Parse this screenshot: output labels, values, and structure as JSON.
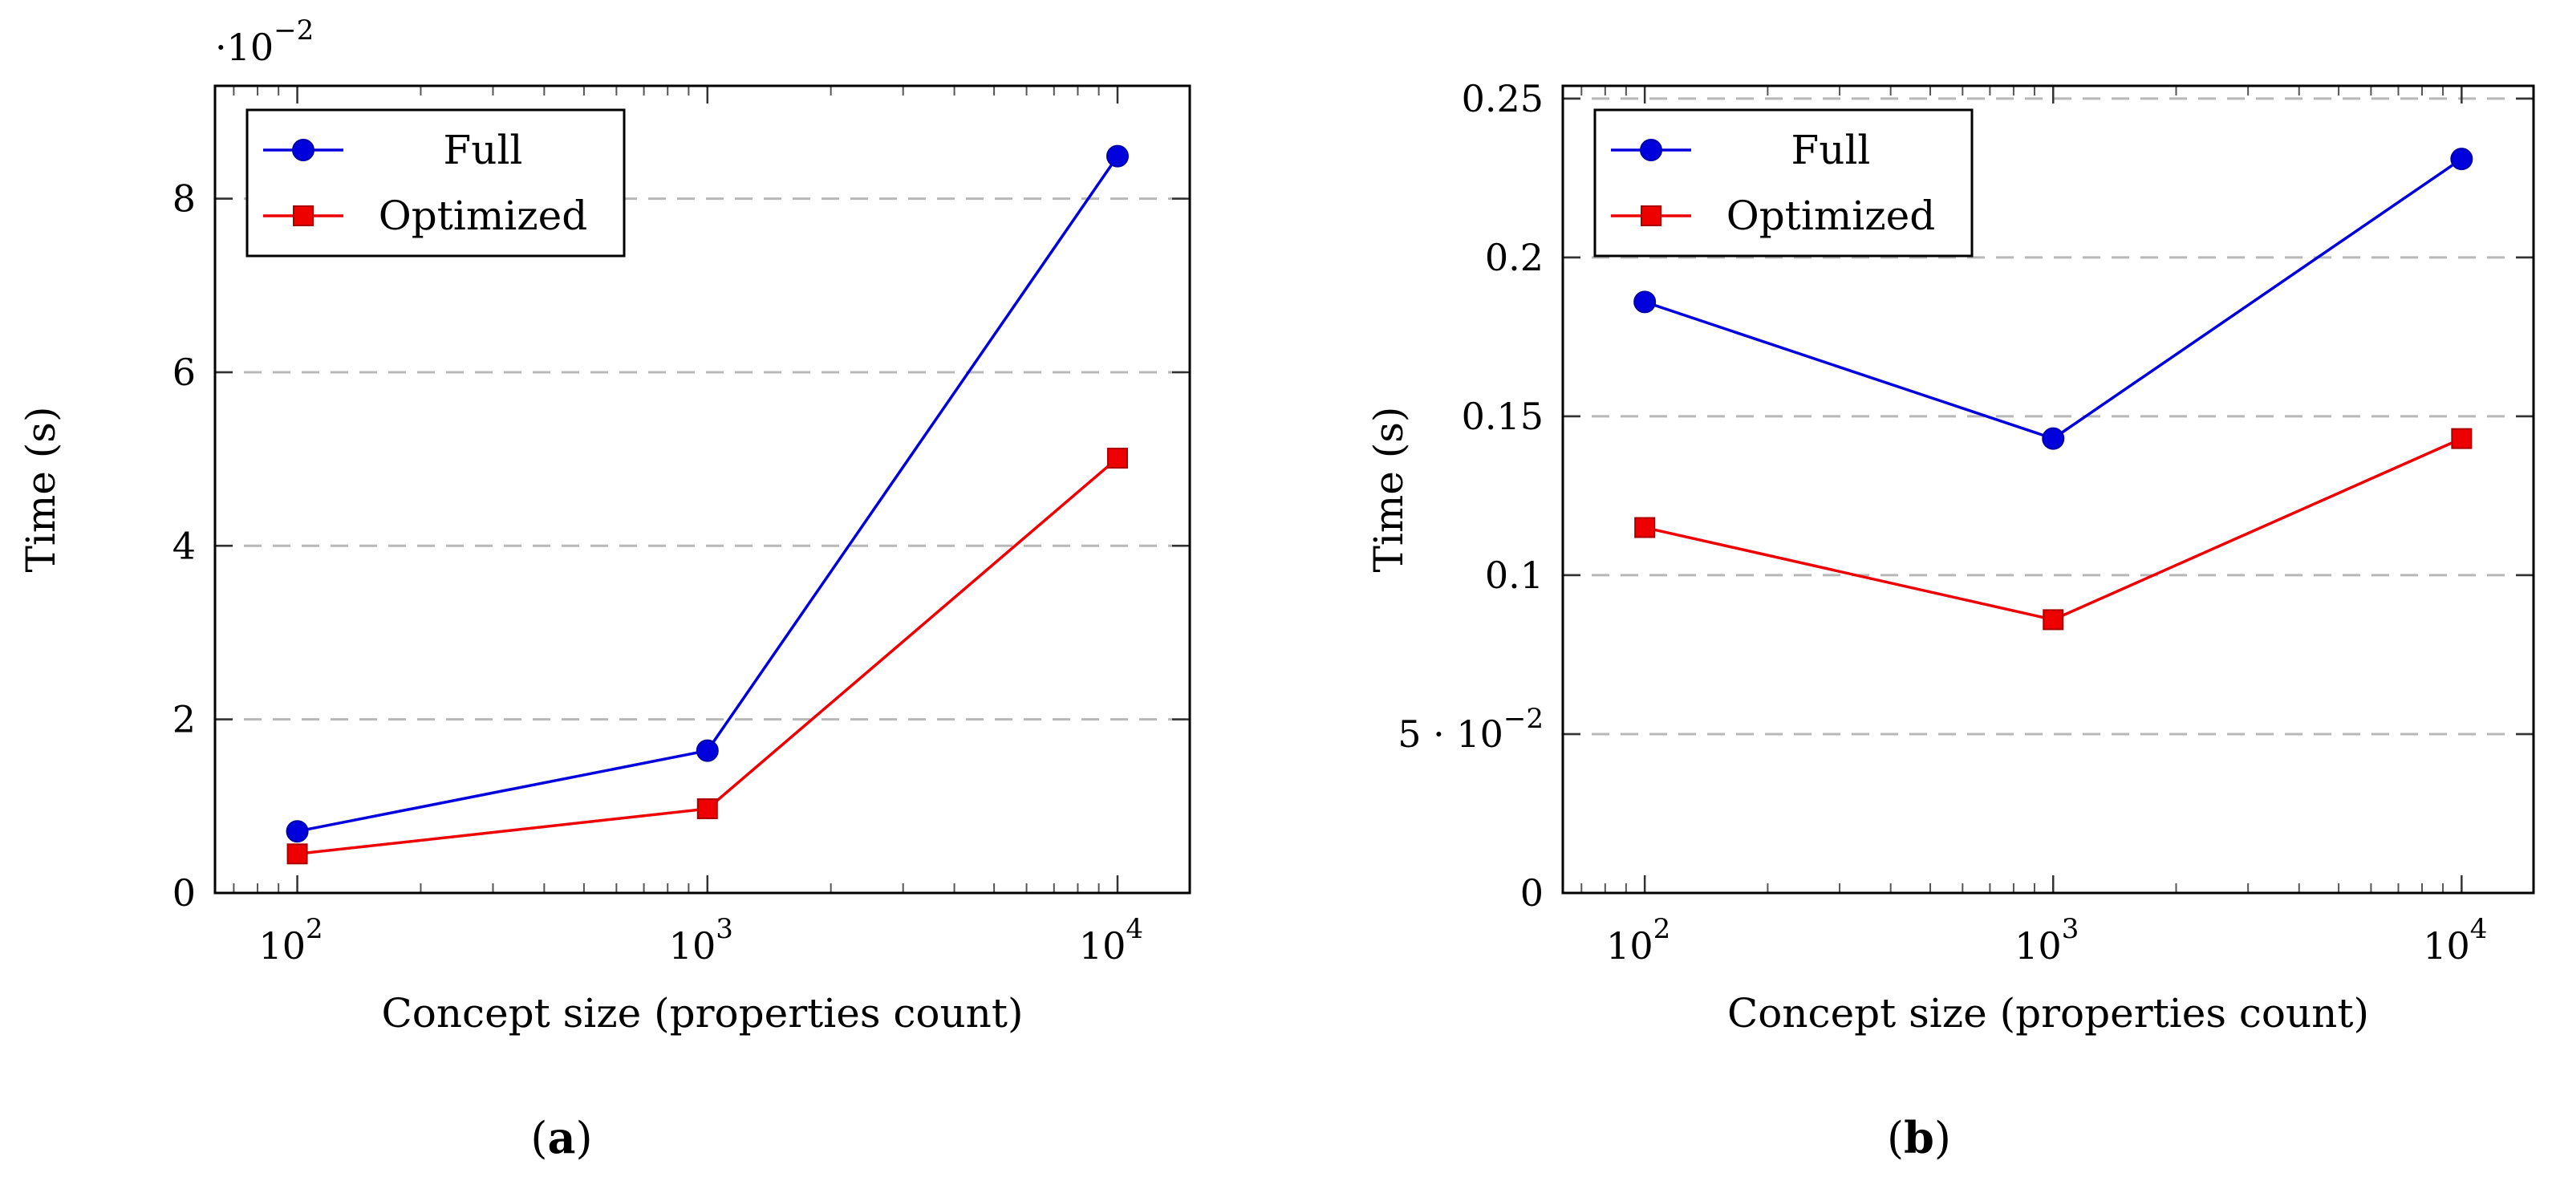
{
  "chart_data": [
    {
      "type": "line",
      "panel": "a",
      "caption_letter": "a",
      "caption_open": "(",
      "caption_close": ")",
      "xlabel": "Concept size (properties count)",
      "ylabel": "Time (s)",
      "xscale": "log",
      "xlim": [
        63,
        15000
      ],
      "ylim": [
        0,
        0.093
      ],
      "x": [
        100,
        1000,
        10000
      ],
      "x_ticks": [
        {
          "value": 100,
          "base": "10",
          "exp": "2"
        },
        {
          "value": 1000,
          "base": "10",
          "exp": "3"
        },
        {
          "value": 10000,
          "base": "10",
          "exp": "4"
        }
      ],
      "y_ticks": [
        {
          "value": 0,
          "label": "0"
        },
        {
          "value": 0.02,
          "label": "2"
        },
        {
          "value": 0.04,
          "label": "4"
        },
        {
          "value": 0.06,
          "label": "6"
        },
        {
          "value": 0.08,
          "label": "8"
        }
      ],
      "y_scale_note": {
        "prefix": "·10",
        "exp": "−2"
      },
      "grid": "horizontal-dashed",
      "legend_position": "top-left",
      "series": [
        {
          "name": "Full",
          "color": "#0000dd",
          "marker": "circle",
          "values": [
            0.0071,
            0.0164,
            0.0849
          ]
        },
        {
          "name": "Optimized",
          "color": "#ee0000",
          "marker": "square",
          "values": [
            0.0045,
            0.0097,
            0.0501
          ]
        }
      ]
    },
    {
      "type": "line",
      "panel": "b",
      "caption_letter": "b",
      "caption_open": "(",
      "caption_close": ")",
      "xlabel": "Concept size (properties count)",
      "ylabel": "Time (s)",
      "xscale": "log",
      "xlim": [
        63,
        15000
      ],
      "ylim": [
        0,
        0.254
      ],
      "x": [
        100,
        1000,
        10000
      ],
      "x_ticks": [
        {
          "value": 100,
          "base": "10",
          "exp": "2"
        },
        {
          "value": 1000,
          "base": "10",
          "exp": "3"
        },
        {
          "value": 10000,
          "base": "10",
          "exp": "4"
        }
      ],
      "y_ticks": [
        {
          "value": 0,
          "label": "0"
        },
        {
          "value": 0.05,
          "label": "5 · 10",
          "exp": "−2"
        },
        {
          "value": 0.1,
          "label": "0.1"
        },
        {
          "value": 0.15,
          "label": "0.15"
        },
        {
          "value": 0.2,
          "label": "0.2"
        },
        {
          "value": 0.25,
          "label": "0.25"
        }
      ],
      "grid": "horizontal-dashed",
      "legend_position": "top-left",
      "series": [
        {
          "name": "Full",
          "color": "#0000dd",
          "marker": "circle",
          "values": [
            0.186,
            0.143,
            0.231
          ]
        },
        {
          "name": "Optimized",
          "color": "#ee0000",
          "marker": "square",
          "values": [
            0.115,
            0.086,
            0.143
          ]
        }
      ]
    }
  ]
}
